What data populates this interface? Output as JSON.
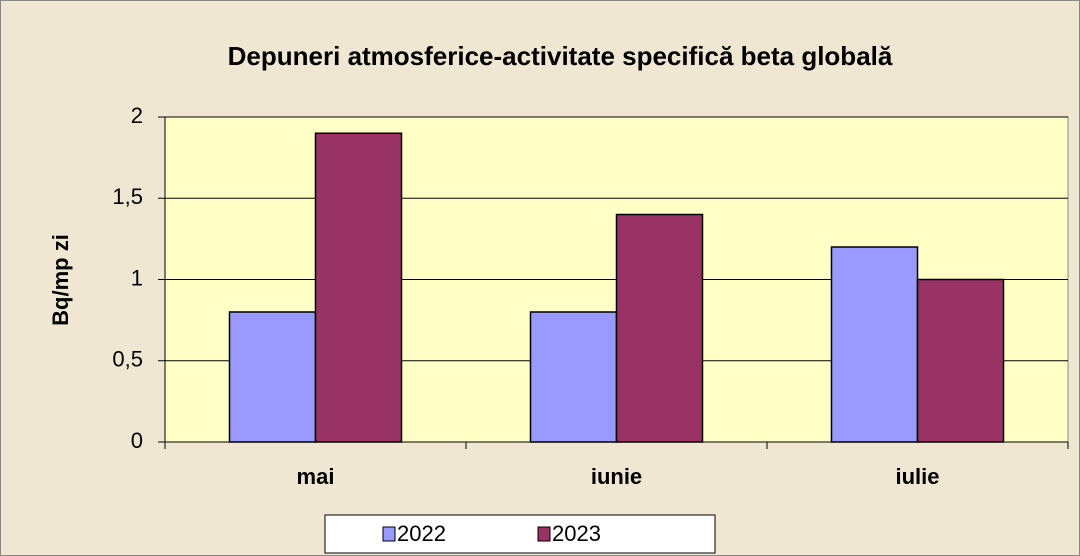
{
  "chart_data": {
    "type": "bar",
    "title": "Depuneri atmosferice-activitate specifică beta globală",
    "y_label": "Bq/mp zi",
    "categories": [
      "mai",
      "iunie",
      "iulie"
    ],
    "series": [
      {
        "name": "2022",
        "color": "#9999ff",
        "values": [
          0.8,
          0.8,
          1.2
        ]
      },
      {
        "name": "2023",
        "color": "#993366",
        "values": [
          1.9,
          1.4,
          1.0
        ]
      }
    ],
    "ylim": [
      0,
      2
    ],
    "yticks": [
      0,
      {
        "value": 0.5,
        "label": "0,5"
      },
      1,
      {
        "value": 1.5,
        "label": "1,5"
      },
      2
    ],
    "grid": true,
    "legend": "bottom"
  }
}
